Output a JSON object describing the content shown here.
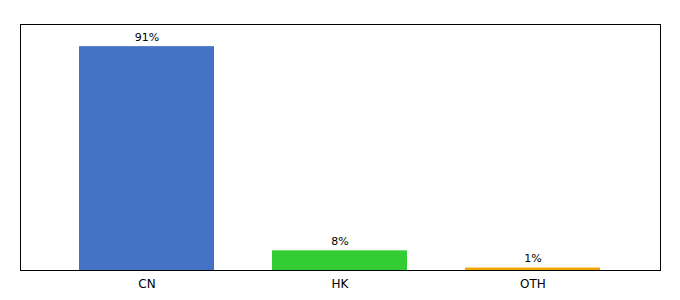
{
  "chart_data": {
    "type": "bar",
    "categories": [
      "CN",
      "HK",
      "OTH"
    ],
    "values": [
      91,
      8,
      1
    ],
    "value_labels": [
      "91%",
      "8%",
      "1%"
    ],
    "colors": [
      "#4472c4",
      "#33cc33",
      "#f0a500"
    ],
    "ylim": [
      0,
      100
    ],
    "data_labels": true,
    "tick_labels": "x"
  }
}
